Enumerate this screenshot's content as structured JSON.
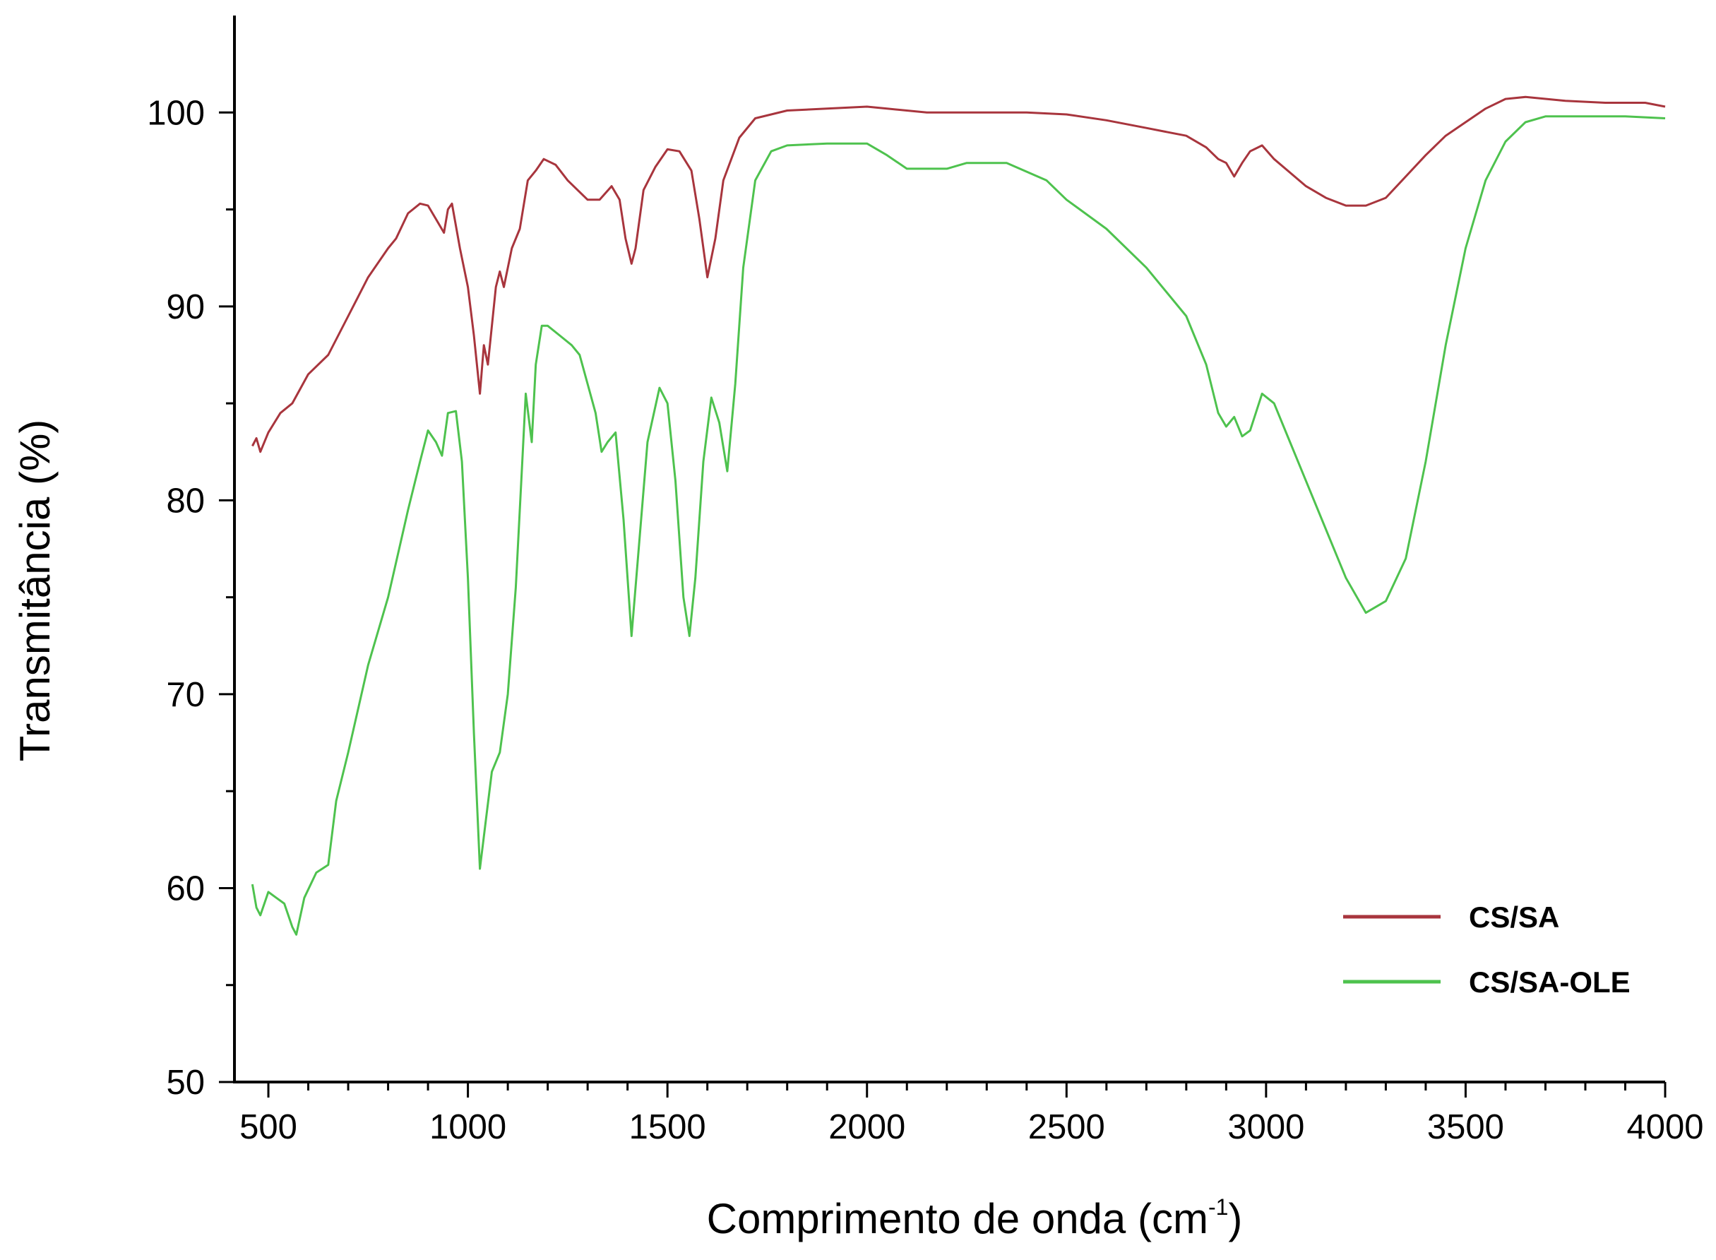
{
  "chart_data": {
    "type": "line",
    "xlabel": "Comprimento de onda (cm",
    "xlabel_sup": "-1",
    "xlabel_close": ")",
    "ylabel": "Transmitância (%)",
    "xlim": [
      415,
      4000
    ],
    "ylim": [
      50,
      105
    ],
    "x_ticks": [
      500,
      1000,
      1500,
      2000,
      2500,
      3000,
      3500,
      4000
    ],
    "y_ticks": [
      50,
      60,
      70,
      80,
      90,
      100
    ],
    "x_tick_labels": [
      "500",
      "1000",
      "1500",
      "2000",
      "2500",
      "3000",
      "3500",
      "4000"
    ],
    "y_tick_labels": [
      "50",
      "60",
      "70",
      "80",
      "90",
      "100"
    ],
    "x_minor_step": 100,
    "y_minor_step": 5,
    "grid": false,
    "legend_position": "bottom-right",
    "series": [
      {
        "name": "CS/SA",
        "color": "#a8353d",
        "points": [
          [
            460,
            82.8
          ],
          [
            470,
            83.2
          ],
          [
            480,
            82.5
          ],
          [
            500,
            83.5
          ],
          [
            530,
            84.5
          ],
          [
            560,
            85.0
          ],
          [
            600,
            86.5
          ],
          [
            650,
            87.5
          ],
          [
            700,
            89.5
          ],
          [
            750,
            91.5
          ],
          [
            800,
            93.0
          ],
          [
            820,
            93.5
          ],
          [
            850,
            94.8
          ],
          [
            880,
            95.3
          ],
          [
            900,
            95.2
          ],
          [
            920,
            94.5
          ],
          [
            940,
            93.8
          ],
          [
            950,
            95.0
          ],
          [
            960,
            95.3
          ],
          [
            980,
            93.0
          ],
          [
            1000,
            91.0
          ],
          [
            1015,
            88.5
          ],
          [
            1030,
            85.5
          ],
          [
            1040,
            88.0
          ],
          [
            1050,
            87.0
          ],
          [
            1070,
            91.0
          ],
          [
            1080,
            91.8
          ],
          [
            1090,
            91.0
          ],
          [
            1110,
            93.0
          ],
          [
            1130,
            94.0
          ],
          [
            1150,
            96.5
          ],
          [
            1170,
            97.0
          ],
          [
            1190,
            97.6
          ],
          [
            1220,
            97.3
          ],
          [
            1250,
            96.5
          ],
          [
            1300,
            95.5
          ],
          [
            1330,
            95.5
          ],
          [
            1360,
            96.2
          ],
          [
            1380,
            95.5
          ],
          [
            1395,
            93.5
          ],
          [
            1410,
            92.2
          ],
          [
            1420,
            93.0
          ],
          [
            1440,
            96.0
          ],
          [
            1470,
            97.2
          ],
          [
            1500,
            98.1
          ],
          [
            1530,
            98.0
          ],
          [
            1560,
            97.0
          ],
          [
            1580,
            94.5
          ],
          [
            1600,
            91.5
          ],
          [
            1620,
            93.5
          ],
          [
            1640,
            96.5
          ],
          [
            1680,
            98.7
          ],
          [
            1720,
            99.7
          ],
          [
            1800,
            100.1
          ],
          [
            1900,
            100.2
          ],
          [
            2000,
            100.3
          ],
          [
            2050,
            100.2
          ],
          [
            2150,
            100.0
          ],
          [
            2300,
            100.0
          ],
          [
            2400,
            100.0
          ],
          [
            2500,
            99.9
          ],
          [
            2600,
            99.6
          ],
          [
            2700,
            99.2
          ],
          [
            2800,
            98.8
          ],
          [
            2850,
            98.2
          ],
          [
            2880,
            97.6
          ],
          [
            2900,
            97.4
          ],
          [
            2920,
            96.7
          ],
          [
            2940,
            97.4
          ],
          [
            2960,
            98.0
          ],
          [
            2990,
            98.3
          ],
          [
            3020,
            97.6
          ],
          [
            3060,
            96.9
          ],
          [
            3100,
            96.2
          ],
          [
            3150,
            95.6
          ],
          [
            3200,
            95.2
          ],
          [
            3250,
            95.2
          ],
          [
            3300,
            95.6
          ],
          [
            3350,
            96.7
          ],
          [
            3400,
            97.8
          ],
          [
            3450,
            98.8
          ],
          [
            3500,
            99.5
          ],
          [
            3550,
            100.2
          ],
          [
            3600,
            100.7
          ],
          [
            3650,
            100.8
          ],
          [
            3750,
            100.6
          ],
          [
            3850,
            100.5
          ],
          [
            3950,
            100.5
          ],
          [
            4000,
            100.3
          ]
        ]
      },
      {
        "name": "CS/SA-OLE",
        "color": "#4ec24e",
        "points": [
          [
            460,
            60.2
          ],
          [
            470,
            59.0
          ],
          [
            480,
            58.6
          ],
          [
            500,
            59.8
          ],
          [
            520,
            59.5
          ],
          [
            540,
            59.2
          ],
          [
            560,
            58.0
          ],
          [
            570,
            57.6
          ],
          [
            590,
            59.5
          ],
          [
            620,
            60.8
          ],
          [
            650,
            61.2
          ],
          [
            670,
            64.5
          ],
          [
            700,
            67.0
          ],
          [
            750,
            71.5
          ],
          [
            800,
            75.0
          ],
          [
            850,
            79.5
          ],
          [
            880,
            82.0
          ],
          [
            900,
            83.6
          ],
          [
            920,
            83.0
          ],
          [
            935,
            82.3
          ],
          [
            950,
            84.5
          ],
          [
            970,
            84.6
          ],
          [
            985,
            82.0
          ],
          [
            1000,
            76.0
          ],
          [
            1015,
            68.0
          ],
          [
            1030,
            61.0
          ],
          [
            1045,
            63.5
          ],
          [
            1060,
            66.0
          ],
          [
            1080,
            67.0
          ],
          [
            1100,
            70.0
          ],
          [
            1120,
            75.5
          ],
          [
            1135,
            81.5
          ],
          [
            1145,
            85.5
          ],
          [
            1160,
            83.0
          ],
          [
            1170,
            87.0
          ],
          [
            1185,
            89.0
          ],
          [
            1200,
            89.0
          ],
          [
            1230,
            88.5
          ],
          [
            1260,
            88.0
          ],
          [
            1280,
            87.5
          ],
          [
            1300,
            86.0
          ],
          [
            1320,
            84.5
          ],
          [
            1335,
            82.5
          ],
          [
            1350,
            83.0
          ],
          [
            1370,
            83.5
          ],
          [
            1390,
            79.0
          ],
          [
            1410,
            73.0
          ],
          [
            1430,
            78.0
          ],
          [
            1450,
            83.0
          ],
          [
            1480,
            85.8
          ],
          [
            1500,
            85.0
          ],
          [
            1520,
            81.0
          ],
          [
            1540,
            75.0
          ],
          [
            1555,
            73.0
          ],
          [
            1570,
            76.0
          ],
          [
            1590,
            82.0
          ],
          [
            1610,
            85.3
          ],
          [
            1630,
            84.0
          ],
          [
            1650,
            81.5
          ],
          [
            1670,
            86.0
          ],
          [
            1690,
            92.0
          ],
          [
            1720,
            96.5
          ],
          [
            1760,
            98.0
          ],
          [
            1800,
            98.3
          ],
          [
            1900,
            98.4
          ],
          [
            2000,
            98.4
          ],
          [
            2050,
            97.8
          ],
          [
            2100,
            97.1
          ],
          [
            2200,
            97.1
          ],
          [
            2250,
            97.4
          ],
          [
            2350,
            97.4
          ],
          [
            2450,
            96.5
          ],
          [
            2500,
            95.5
          ],
          [
            2600,
            94.0
          ],
          [
            2700,
            92.0
          ],
          [
            2800,
            89.5
          ],
          [
            2850,
            87.0
          ],
          [
            2880,
            84.5
          ],
          [
            2900,
            83.8
          ],
          [
            2920,
            84.3
          ],
          [
            2940,
            83.3
          ],
          [
            2960,
            83.6
          ],
          [
            2990,
            85.5
          ],
          [
            3020,
            85.0
          ],
          [
            3060,
            83.0
          ],
          [
            3100,
            81.0
          ],
          [
            3150,
            78.5
          ],
          [
            3200,
            76.0
          ],
          [
            3250,
            74.2
          ],
          [
            3300,
            74.8
          ],
          [
            3350,
            77.0
          ],
          [
            3400,
            82.0
          ],
          [
            3450,
            88.0
          ],
          [
            3500,
            93.0
          ],
          [
            3550,
            96.5
          ],
          [
            3600,
            98.5
          ],
          [
            3650,
            99.5
          ],
          [
            3700,
            99.8
          ],
          [
            3800,
            99.8
          ],
          [
            3900,
            99.8
          ],
          [
            4000,
            99.7
          ]
        ]
      }
    ]
  }
}
